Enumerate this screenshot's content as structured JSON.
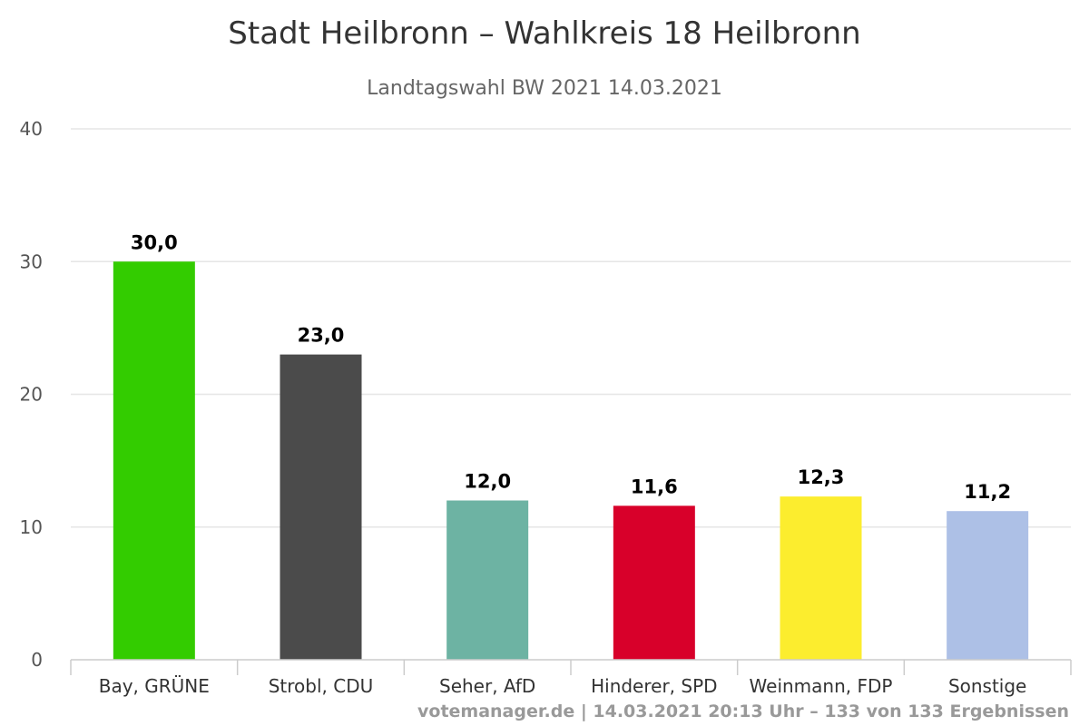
{
  "chart_data": {
    "type": "bar",
    "title": "Stadt Heilbronn – Wahlkreis 18 Heilbronn",
    "subtitle": "Landtagswahl BW 2021 14.03.2021",
    "categories": [
      "Bay, GRÜNE",
      "Strobl, CDU",
      "Seher, AfD",
      "Hinderer, SPD",
      "Weinmann, FDP",
      "Sonstige"
    ],
    "values": [
      30.0,
      23.0,
      12.0,
      11.6,
      12.3,
      11.2
    ],
    "value_labels": [
      "30,0",
      "23,0",
      "12,0",
      "11,6",
      "12,3",
      "11,2"
    ],
    "colors": [
      "#33cc00",
      "#4b4b4b",
      "#6db3a3",
      "#d8002a",
      "#fced2e",
      "#adc0e6"
    ],
    "ylim": [
      0,
      40
    ],
    "yticks": [
      0,
      10,
      20,
      30,
      40
    ],
    "ytick_labels": [
      "0",
      "10",
      "20",
      "30",
      "40"
    ],
    "grid": true,
    "legend": "none"
  },
  "credits": "votemanager.de | 14.03.2021 20:13 Uhr – 133 von 133 Ergebnissen"
}
